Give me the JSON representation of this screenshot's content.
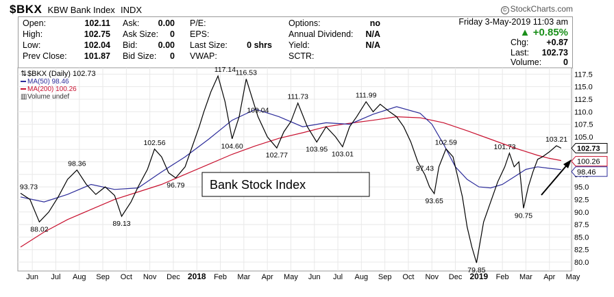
{
  "header": {
    "symbol": "$BKX",
    "name": "KBW Bank Index",
    "exchange": "INDX",
    "brand": "StockCharts.com"
  },
  "quote": {
    "open_label": "Open:",
    "open": "102.11",
    "high_label": "High:",
    "high": "102.75",
    "low_label": "Low:",
    "low": "102.04",
    "prev_close_label": "Prev Close:",
    "prev_close": "101.87",
    "ask_label": "Ask:",
    "ask": "0.00",
    "ask_size_label": "Ask Size:",
    "ask_size": "0",
    "bid_label": "Bid:",
    "bid": "0.00",
    "bid_size_label": "Bid Size:",
    "bid_size": "0",
    "pe_label": "P/E:",
    "eps_label": "EPS:",
    "last_size_label": "Last Size:",
    "last_size": "0 shrs",
    "vwap_label": "VWAP:",
    "options_label": "Options:",
    "options": "no",
    "annual_dividend_label": "Annual Dividend:",
    "annual_dividend": "N/A",
    "yield_label": "Yield:",
    "yield": "N/A",
    "sctr_label": "SCTR:",
    "datetime": "Friday  3-May-2019  11:03 am",
    "change_pct": "+0.85%",
    "chg_label": "Chg:",
    "chg": "+0.87",
    "last_label": "Last:",
    "last": "102.73",
    "volume_label": "Volume:",
    "volume": "0"
  },
  "legend": {
    "price": "$BKX (Daily) 102.73",
    "ma50": "MA(50) 98.46",
    "ma200": "MA(200) 100.26",
    "volume": "Volume undef"
  },
  "annotation": {
    "text": "Bank Stock Index"
  },
  "colors": {
    "price": "#000000",
    "ma50": "#2b2b9a",
    "ma200": "#c8102e",
    "up_arrow": "#1a8f1a",
    "grid": "#e8e8e8"
  },
  "chart_data": {
    "type": "line",
    "title": "$BKX KBW Bank Index",
    "ylim": [
      78.5,
      118.5
    ],
    "y_ticks": [
      80.0,
      82.5,
      85.0,
      87.5,
      90.0,
      92.5,
      95.0,
      97.5,
      100.0,
      102.5,
      105.0,
      107.5,
      110.0,
      112.5,
      115.0,
      117.5
    ],
    "x_ticks": [
      "Jun",
      "Jul",
      "Aug",
      "Sep",
      "Oct",
      "Nov",
      "Dec",
      "2018",
      "Feb",
      "Mar",
      "Apr",
      "May",
      "Jun",
      "Jul",
      "Aug",
      "Sep",
      "Oct",
      "Nov",
      "Dec",
      "2019",
      "Feb",
      "Mar",
      "Apr",
      "May"
    ],
    "series": [
      {
        "name": "$BKX (Daily)",
        "x": [
          0,
          0.4,
          0.8,
          1.2,
          1.6,
          2,
          2.4,
          2.8,
          3.2,
          3.6,
          4,
          4.3,
          4.7,
          5,
          5.4,
          5.7,
          6,
          6.3,
          6.6,
          7,
          7.3,
          7.6,
          7.8,
          8.1,
          8.4,
          8.7,
          9,
          9.3,
          9.6,
          9.9,
          10.1,
          10.5,
          10.9,
          11.2,
          11.5,
          11.8,
          12.2,
          12.6,
          13,
          13.4,
          13.7,
          14,
          14.3,
          14.7,
          15,
          15.3,
          15.7,
          16,
          16.3,
          16.6,
          16.9,
          17.2,
          17.4,
          17.6,
          17.8,
          18.1,
          18.4,
          18.8,
          19,
          19.2,
          19.4,
          19.7,
          20,
          20.3,
          20.6,
          20.8,
          21,
          21.2,
          21.4,
          21.6,
          21.8,
          22,
          22.2,
          22.5,
          22.8,
          23
        ],
        "values": [
          93.73,
          92.5,
          88.02,
          90,
          93,
          96.5,
          98.36,
          95.5,
          93.5,
          95,
          93.3,
          89.13,
          92,
          95,
          98.5,
          102.56,
          101,
          97.8,
          96.79,
          99,
          103,
          107,
          110,
          114,
          117.14,
          112,
          104.6,
          109,
          116.53,
          112,
          109.04,
          105,
          102.77,
          106,
          108,
          111.73,
          107,
          103.95,
          107,
          105,
          103.01,
          107,
          109,
          111.99,
          110,
          111.5,
          110,
          109,
          107,
          104,
          100,
          97.43,
          95,
          93.65,
          99,
          102.59,
          101,
          93,
          87,
          83,
          79.85,
          88,
          92,
          96,
          99,
          101.73,
          99,
          100,
          90.75,
          95,
          98,
          100.5,
          101,
          102,
          103.21,
          102.73
        ]
      },
      {
        "name": "MA(50)",
        "x": [
          0,
          1,
          2,
          3,
          4,
          5,
          6,
          7,
          8,
          9,
          10,
          11,
          12,
          13,
          14,
          15,
          16,
          17,
          17.5,
          18,
          18.5,
          19,
          19.5,
          20,
          20.5,
          21,
          21.5,
          22,
          22.5,
          23
        ],
        "values": [
          93,
          92,
          93.5,
          95.5,
          94.5,
          94.8,
          98,
          101,
          104.5,
          108.3,
          110.5,
          109,
          107,
          107.8,
          107.5,
          109.5,
          111,
          109.7,
          107.5,
          103.5,
          99,
          96.5,
          95,
          94.8,
          95.5,
          97,
          98.5,
          99,
          98.7,
          98.46
        ]
      },
      {
        "name": "MA(200)",
        "x": [
          0,
          1,
          2,
          3,
          4,
          5,
          6,
          7,
          8,
          9,
          10,
          11,
          12,
          13,
          14,
          15,
          16,
          17,
          18,
          19,
          20,
          21,
          22,
          22.5,
          23
        ],
        "values": [
          83,
          86,
          88.5,
          90.5,
          92.5,
          94,
          95.5,
          97.5,
          99.5,
          101.5,
          103.2,
          104.7,
          105.8,
          107,
          107.7,
          108.3,
          109,
          108.8,
          107.8,
          106.2,
          104.5,
          102.8,
          101.3,
          100.7,
          100.26
        ]
      }
    ],
    "price_labels": [
      {
        "x": 0,
        "y": 93.73,
        "text": "93.73"
      },
      {
        "x": 0.8,
        "y": 88.02,
        "text": "88.02"
      },
      {
        "x": 2.4,
        "y": 98.36,
        "text": "98.36"
      },
      {
        "x": 4.3,
        "y": 89.13,
        "text": "89.13"
      },
      {
        "x": 5.7,
        "y": 102.56,
        "text": "102.56"
      },
      {
        "x": 6.6,
        "y": 96.79,
        "text": "96.79"
      },
      {
        "x": 8.7,
        "y": 117.14,
        "text": "117.14"
      },
      {
        "x": 9.0,
        "y": 104.6,
        "text": "104.60"
      },
      {
        "x": 9.6,
        "y": 116.53,
        "text": "116.53"
      },
      {
        "x": 10.1,
        "y": 109.04,
        "text": "109.04"
      },
      {
        "x": 10.9,
        "y": 102.77,
        "text": "102.77"
      },
      {
        "x": 11.8,
        "y": 111.73,
        "text": "111.73"
      },
      {
        "x": 12.6,
        "y": 103.95,
        "text": "103.95"
      },
      {
        "x": 13.7,
        "y": 103.01,
        "text": "103.01"
      },
      {
        "x": 14.7,
        "y": 111.99,
        "text": "111.99"
      },
      {
        "x": 17.2,
        "y": 97.43,
        "text": "97.43"
      },
      {
        "x": 17.6,
        "y": 93.65,
        "text": "93.65"
      },
      {
        "x": 18.1,
        "y": 102.59,
        "text": "102.59"
      },
      {
        "x": 19.4,
        "y": 79.85,
        "text": "79.85"
      },
      {
        "x": 20.6,
        "y": 101.73,
        "text": "101.73"
      },
      {
        "x": 21.4,
        "y": 90.75,
        "text": "90.75"
      },
      {
        "x": 22.8,
        "y": 103.21,
        "text": "103.21"
      }
    ],
    "axis_tags": [
      {
        "value": 102.73,
        "text": "102.73",
        "series": "price"
      },
      {
        "value": 100.26,
        "text": "100.26",
        "series": "ma200"
      },
      {
        "value": 98.46,
        "text": "98.46",
        "series": "ma50"
      }
    ],
    "grid": true,
    "legend_position": "top-left"
  }
}
